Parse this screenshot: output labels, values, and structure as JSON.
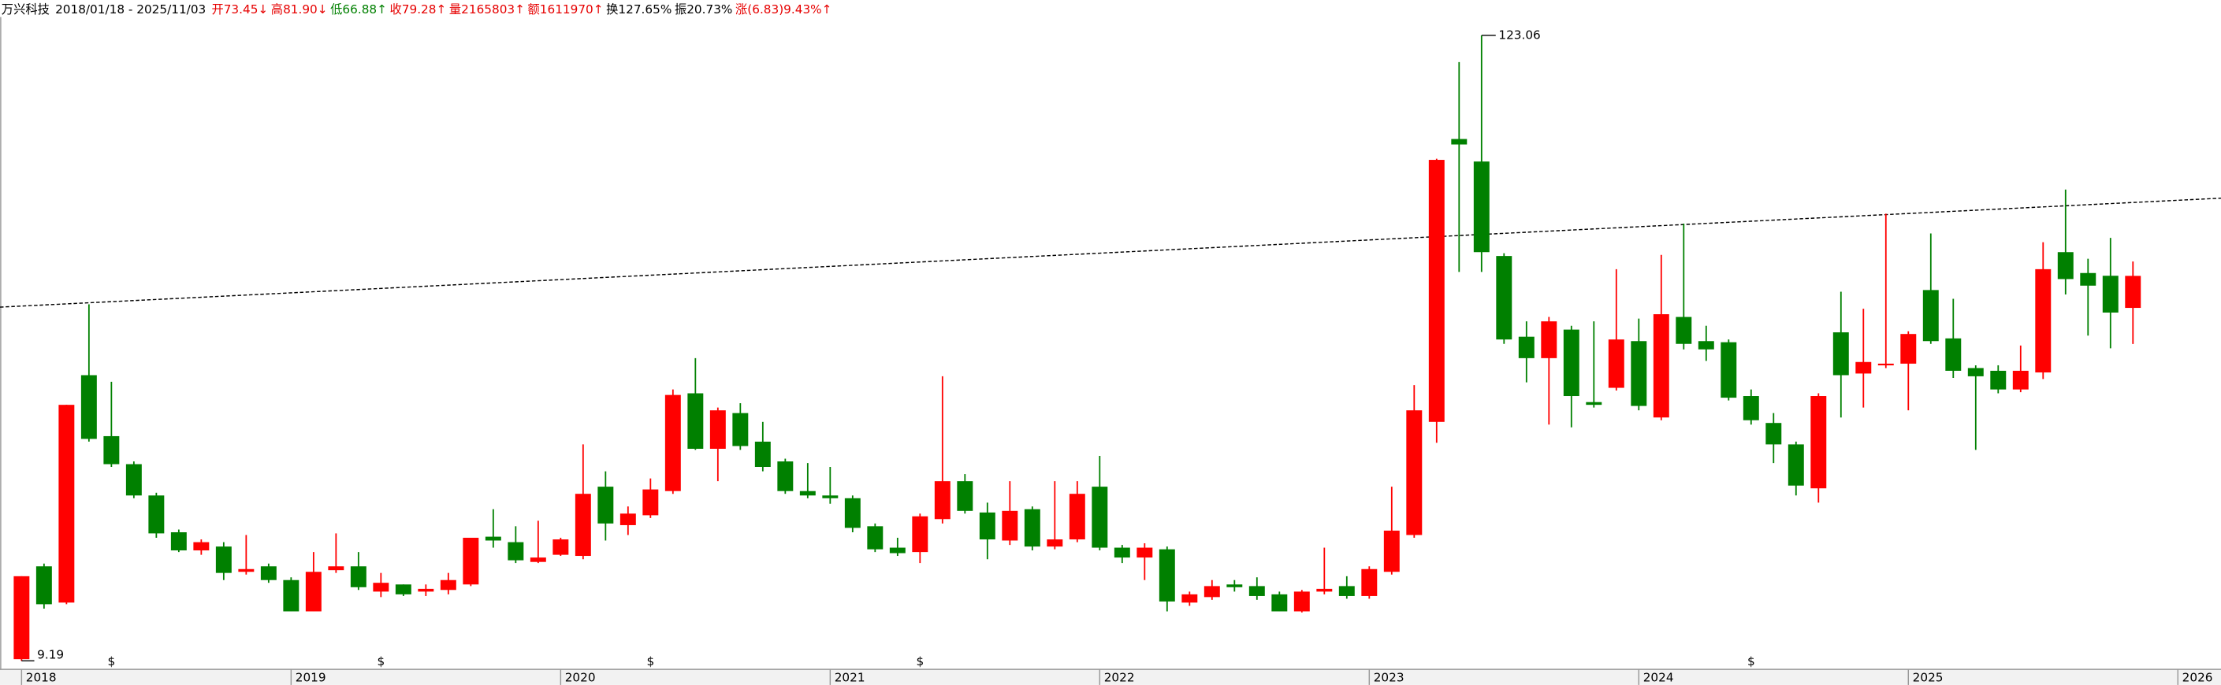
{
  "header": {
    "title": "万兴科技",
    "date_range": "2018/01/18 - 2025/11/03",
    "stats": [
      {
        "text": "开73.45↓",
        "color": "#e60000"
      },
      {
        "text": "高81.90↓",
        "color": "#e60000"
      },
      {
        "text": "低66.88↑",
        "color": "#008000"
      },
      {
        "text": "收79.28↑",
        "color": "#e60000"
      },
      {
        "text": "量2165803↑",
        "color": "#e60000"
      },
      {
        "text": "额1611970↑",
        "color": "#e60000"
      },
      {
        "text": "换127.65%",
        "color": "#000000"
      },
      {
        "text": "振20.73%",
        "color": "#000000"
      },
      {
        "text": "涨(6.83)9.43%↑",
        "color": "#e60000"
      }
    ]
  },
  "chart_data": {
    "type": "candlestick",
    "up_color": "#ff0000",
    "down_color": "#008000",
    "open": [
      9.5,
      26.4,
      19.8,
      61.2,
      50.1,
      45.0,
      39.3,
      32.6,
      29.3,
      30.0,
      25.4,
      26.4,
      23.9,
      18.2,
      25.7,
      26.4,
      21.8,
      23.1,
      21.8,
      22.1,
      23.1,
      31.8,
      30.8,
      27.2,
      28.5,
      28.3,
      40.9,
      33.9,
      35.7,
      40.1,
      57.9,
      47.8,
      54.3,
      49.1,
      45.5,
      40.1,
      39.3,
      38.8,
      33.7,
      29.8,
      29.0,
      35.0,
      41.9,
      36.2,
      31.1,
      36.8,
      30.0,
      31.3,
      40.9,
      29.8,
      28.0,
      29.5,
      19.8,
      20.8,
      23.1,
      22.8,
      21.3,
      18.2,
      21.8,
      22.8,
      21.0,
      25.4,
      32.1,
      52.7,
      104.2,
      100.1,
      82.9,
      68.2,
      64.3,
      69.5,
      56.3,
      58.9,
      67.4,
      53.5,
      71.8,
      67.4,
      67.2,
      57.4,
      52.5,
      48.6,
      40.6,
      69.0,
      61.5,
      63.1,
      63.3,
      76.7,
      67.9,
      62.5,
      62.0,
      58.6,
      61.7,
      83.6,
      79.8,
      79.3,
      73.45
    ],
    "high": [
      24.6,
      26.9,
      55.8,
      74.1,
      60.0,
      45.5,
      39.8,
      33.1,
      31.3,
      30.8,
      32.1,
      26.9,
      24.4,
      29.0,
      32.4,
      29.0,
      25.2,
      23.1,
      23.1,
      25.2,
      31.6,
      36.8,
      33.7,
      34.7,
      31.6,
      48.6,
      43.7,
      37.3,
      42.4,
      58.6,
      64.3,
      55.3,
      56.1,
      52.7,
      46.0,
      45.2,
      44.5,
      39.3,
      34.2,
      31.6,
      36.0,
      61.0,
      43.2,
      38.0,
      41.9,
      37.3,
      41.9,
      41.9,
      46.5,
      30.3,
      30.6,
      30.0,
      21.8,
      23.9,
      23.9,
      24.4,
      21.8,
      22.1,
      29.8,
      24.6,
      26.4,
      40.9,
      59.4,
      100.6,
      118.2,
      123.06,
      83.4,
      71.0,
      71.8,
      70.2,
      71.0,
      80.5,
      71.5,
      83.1,
      88.8,
      70.2,
      67.7,
      58.6,
      54.3,
      49.1,
      57.9,
      76.4,
      73.3,
      90.6,
      69.2,
      87.0,
      75.1,
      63.0,
      63.0,
      66.6,
      85.4,
      95.0,
      82.4,
      86.2,
      81.9
    ],
    "low": [
      9.19,
      18.7,
      19.5,
      49.1,
      44.5,
      38.8,
      31.6,
      29.0,
      28.5,
      23.9,
      24.9,
      23.4,
      18.2,
      18.2,
      25.2,
      22.1,
      20.8,
      21.0,
      21.0,
      21.3,
      22.8,
      29.8,
      27.0,
      27.0,
      28.3,
      27.7,
      31.1,
      32.1,
      35.2,
      39.6,
      47.6,
      41.9,
      47.6,
      43.7,
      39.6,
      38.8,
      37.8,
      32.6,
      29.0,
      28.3,
      27.0,
      34.2,
      36.0,
      27.7,
      30.3,
      29.3,
      29.5,
      30.8,
      29.3,
      27.0,
      23.9,
      18.2,
      19.2,
      20.3,
      21.8,
      20.3,
      18.2,
      18.0,
      21.3,
      20.5,
      20.5,
      24.9,
      31.6,
      48.9,
      80.0,
      80.0,
      66.9,
      59.9,
      52.2,
      51.7,
      55.3,
      58.4,
      54.8,
      53.0,
      65.9,
      63.8,
      56.6,
      52.2,
      45.2,
      39.3,
      38.0,
      53.5,
      55.3,
      62.5,
      54.8,
      66.9,
      60.7,
      47.6,
      57.9,
      58.1,
      60.5,
      75.9,
      68.4,
      66.1,
      66.88
    ],
    "close": [
      24.6,
      19.5,
      55.8,
      49.6,
      45.0,
      39.3,
      32.4,
      29.3,
      30.8,
      25.2,
      25.9,
      23.9,
      18.2,
      25.4,
      26.4,
      22.6,
      23.4,
      21.3,
      22.3,
      23.9,
      31.6,
      31.1,
      27.5,
      28.0,
      31.3,
      39.6,
      34.2,
      36.0,
      40.4,
      57.6,
      47.8,
      54.8,
      48.3,
      44.5,
      40.1,
      39.3,
      38.8,
      33.4,
      29.5,
      28.8,
      35.5,
      41.9,
      36.5,
      31.3,
      36.5,
      30.0,
      31.3,
      39.6,
      29.8,
      28.0,
      29.8,
      20.0,
      21.3,
      22.8,
      22.6,
      21.0,
      18.2,
      21.8,
      22.3,
      21.0,
      25.9,
      32.9,
      54.8,
      100.4,
      103.2,
      83.6,
      67.7,
      64.3,
      71.0,
      57.4,
      55.8,
      67.7,
      55.6,
      72.3,
      66.9,
      65.9,
      57.1,
      53.0,
      48.6,
      41.1,
      57.4,
      61.2,
      63.6,
      63.3,
      68.7,
      67.4,
      62.0,
      61.0,
      58.6,
      62.0,
      80.5,
      78.7,
      77.5,
      72.6,
      79.28
    ],
    "event_labels": [
      null,
      null,
      null,
      null,
      "$",
      null,
      null,
      null,
      null,
      null,
      null,
      null,
      null,
      null,
      null,
      null,
      "$",
      null,
      null,
      null,
      null,
      null,
      null,
      null,
      null,
      null,
      null,
      null,
      "$",
      null,
      null,
      null,
      null,
      null,
      null,
      null,
      null,
      null,
      null,
      null,
      "$",
      null,
      null,
      null,
      null,
      null,
      null,
      null,
      null,
      null,
      null,
      null,
      null,
      null,
      null,
      null,
      null,
      null,
      null,
      null,
      null,
      null,
      null,
      null,
      null,
      null,
      null,
      null,
      null,
      null,
      null,
      null,
      null,
      null,
      null,
      null,
      null,
      "$",
      null,
      null,
      null,
      null,
      null,
      null,
      null,
      null,
      null,
      null,
      null,
      null,
      null,
      null,
      null,
      null,
      null
    ],
    "event_color": "#ff0000",
    "high_label": 123.06,
    "low_label": 9.19,
    "xlim": [
      2017.92,
      2026.16
    ],
    "xticks": [
      2018,
      2019,
      2020,
      2021,
      2022,
      2023,
      2024,
      2025,
      2026
    ],
    "ylim": [
      8,
      128
    ]
  }
}
